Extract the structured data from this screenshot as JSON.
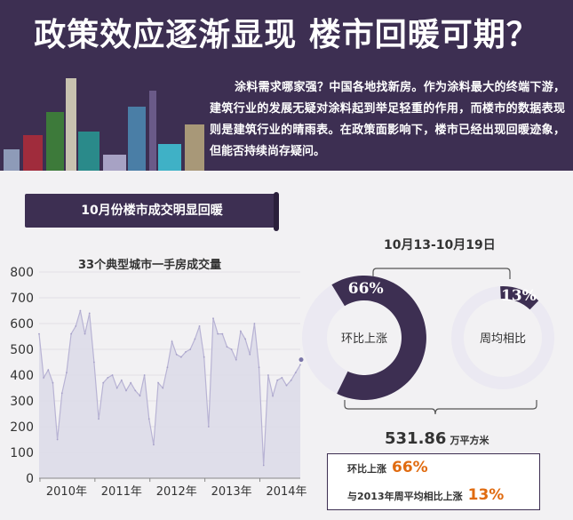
{
  "header": {
    "title": "政策效应逐渐显现  楼市回暖可期？",
    "intro": "涂料需求哪家强？中国各地找新房。作为涂料最大的终端下游，建筑行业的发展无疑对涂料起到举足轻重的作用，而楼市的数据表现则是建筑行业的晴雨表。在政策面影响下，楼市已经出现回暖迹象，但能否持续尚存疑问。"
  },
  "section": {
    "banner": "10月份楼市成交明显回暖"
  },
  "colors": {
    "header_bg": "#3d2f52",
    "accent_orange": "#e06b10",
    "line": "#b8b3d4",
    "area": "#dcdae8",
    "donut_ring": "#ebe9f2"
  },
  "chart_data": [
    {
      "type": "area",
      "title": "33个典型城市一手房成交量",
      "xlabel": "",
      "ylabel": "",
      "ylim": [
        0,
        800
      ],
      "yticks": [
        0,
        100,
        200,
        300,
        400,
        500,
        600,
        700,
        800
      ],
      "xticks": [
        "2010年",
        "2011年",
        "2012年",
        "2013年",
        "2014年"
      ],
      "x": [
        "2010-01",
        "2010-02",
        "2010-03",
        "2010-04",
        "2010-05",
        "2010-06",
        "2010-07",
        "2010-08",
        "2010-09",
        "2010-10",
        "2010-11",
        "2010-12",
        "2011-01",
        "2011-02",
        "2011-03",
        "2011-04",
        "2011-05",
        "2011-06",
        "2011-07",
        "2011-08",
        "2011-09",
        "2011-10",
        "2011-11",
        "2011-12",
        "2012-01",
        "2012-02",
        "2012-03",
        "2012-04",
        "2012-05",
        "2012-06",
        "2012-07",
        "2012-08",
        "2012-09",
        "2012-10",
        "2012-11",
        "2012-12",
        "2013-01",
        "2013-02",
        "2013-03",
        "2013-04",
        "2013-05",
        "2013-06",
        "2013-07",
        "2013-08",
        "2013-09",
        "2013-10",
        "2013-11",
        "2013-12",
        "2014-01",
        "2014-02",
        "2014-03",
        "2014-04",
        "2014-05",
        "2014-06",
        "2014-07",
        "2014-08",
        "2014-09",
        "2014-10"
      ],
      "values": [
        560,
        390,
        420,
        370,
        150,
        330,
        410,
        560,
        590,
        650,
        560,
        640,
        450,
        230,
        370,
        390,
        400,
        350,
        380,
        340,
        370,
        340,
        320,
        400,
        230,
        130,
        370,
        350,
        430,
        530,
        480,
        470,
        490,
        500,
        540,
        590,
        470,
        200,
        620,
        560,
        560,
        510,
        500,
        460,
        570,
        540,
        480,
        600,
        430,
        50,
        400,
        320,
        380,
        390,
        360,
        380,
        410,
        440
      ],
      "highlight_last": true
    },
    {
      "type": "pie",
      "label": "环比上涨",
      "value_label": "66%",
      "value": 66
    },
    {
      "type": "pie",
      "label": "周均相比",
      "value_label": "13%",
      "value": 13
    }
  ],
  "donut_group": {
    "date_range": "10月13-10月19日"
  },
  "summary": {
    "total_value": "531.86",
    "total_unit": "万平方米",
    "row1_label": "环比上涨",
    "row1_value": "66%",
    "row2_label": "与2013年周平均相比上涨",
    "row2_value": "13%"
  }
}
